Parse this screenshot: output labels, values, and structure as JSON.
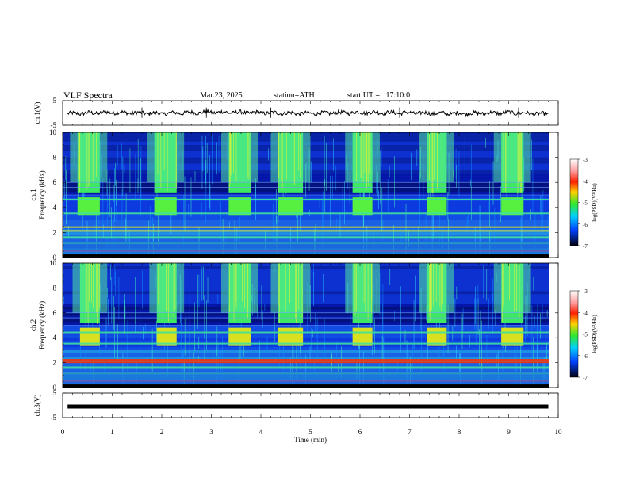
{
  "header": {
    "title": "VLF Spectra",
    "date": "Mar.23, 2025",
    "station": "station=ATH",
    "start_ut": "start UT =   17:10:0"
  },
  "colors": {
    "spectrogram_low": "#00007f",
    "spectrogram_mid": "#2ee86a",
    "spectrogram_high": "#ff2000",
    "trace": "#000000"
  },
  "chart_data": [
    {
      "type": "line",
      "panel": "ch1-voltage",
      "ylabel": "ch.1(V)",
      "ylim": [
        -5,
        5
      ],
      "yticks": [
        "5",
        "-5"
      ],
      "xlim": [
        0,
        10
      ],
      "description_values": "noisy trace centered near 0 V",
      "x": [
        0.1,
        1,
        2,
        3,
        4,
        5,
        6,
        7,
        8,
        9,
        9.8
      ],
      "y": [
        -0.3,
        0.2,
        -0.2,
        0.3,
        0.1,
        -0.2,
        0.2,
        0,
        -0.3,
        0.1,
        -0.5
      ]
    },
    {
      "type": "heatmap",
      "panel": "ch1-spectrogram",
      "ylabel": [
        "ch.1",
        "Frequency (kHz)"
      ],
      "ylim": [
        0,
        10
      ],
      "yticks": [
        "0",
        "2",
        "4",
        "6",
        "8",
        "10"
      ],
      "xlim": [
        0,
        10
      ],
      "colorbar": {
        "label": "log(PSD)(V²/Hz)",
        "range": [
          -7,
          -3
        ],
        "ticks": [
          "-3",
          "-4",
          "-5",
          "-6",
          "-7"
        ]
      },
      "burst_intervals_min": [
        [
          0.3,
          0.75
        ],
        [
          1.85,
          2.3
        ],
        [
          3.35,
          3.8
        ],
        [
          4.35,
          4.85
        ],
        [
          5.85,
          6.25
        ],
        [
          7.35,
          7.75
        ],
        [
          8.85,
          9.3
        ]
      ],
      "tone_bands_khz": [
        0.5,
        1.1,
        1.6,
        2.1,
        2.4,
        3.5,
        4.6
      ]
    },
    {
      "type": "heatmap",
      "panel": "ch2-spectrogram",
      "ylabel": [
        "ch.2",
        "Frequency (kHz)"
      ],
      "ylim": [
        0,
        10
      ],
      "yticks": [
        "0",
        "2",
        "4",
        "6",
        "8",
        "10"
      ],
      "xlim": [
        0,
        10
      ],
      "colorbar": {
        "label": "log(PSD)(V²/Hz)",
        "range": [
          -7,
          -3
        ],
        "ticks": [
          "-3",
          "-4",
          "-5",
          "-6",
          "-7"
        ]
      },
      "burst_intervals_min": [
        [
          0.35,
          0.75
        ],
        [
          1.9,
          2.3
        ],
        [
          3.35,
          3.8
        ],
        [
          4.35,
          4.85
        ],
        [
          5.85,
          6.25
        ],
        [
          7.35,
          7.75
        ],
        [
          8.85,
          9.3
        ]
      ],
      "tone_bands_khz": [
        0.5,
        1.1,
        1.6,
        2.0,
        2.2,
        3.5,
        4.4
      ]
    },
    {
      "type": "line",
      "panel": "ch3-voltage",
      "ylabel": "ch.3(V)",
      "ylim": [
        -5,
        5
      ],
      "yticks": [
        "5",
        "-5"
      ],
      "xlim": [
        0,
        10
      ],
      "x": [
        0.1,
        9.8
      ],
      "y": [
        -0.5,
        -0.5
      ],
      "xlabel": "Time (min)",
      "xticks": [
        "0",
        "1",
        "2",
        "3",
        "4",
        "5",
        "6",
        "7",
        "8",
        "9",
        "10"
      ]
    }
  ]
}
